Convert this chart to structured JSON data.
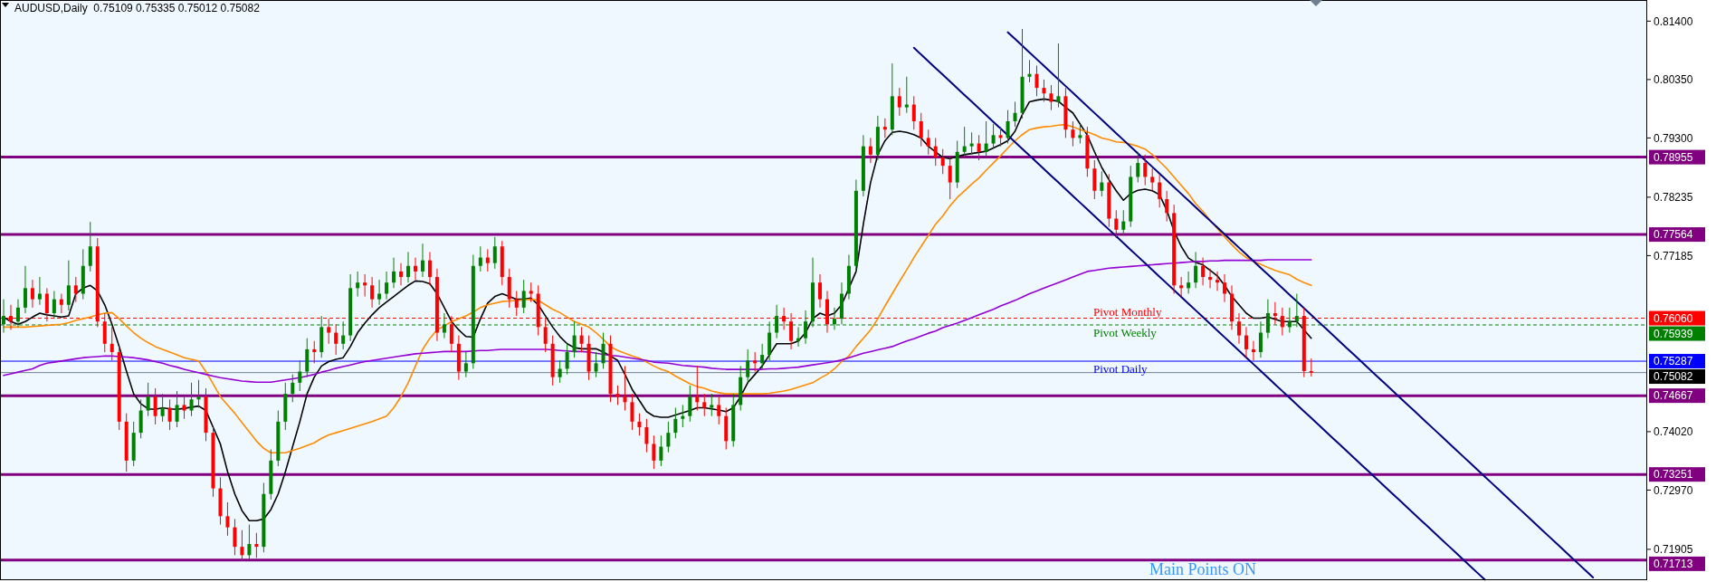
{
  "chart_data": {
    "type": "candlestick",
    "title": "AUDUSD,Daily  0.75109 0.75335 0.75012 0.75082",
    "categories": [
      null,
      null,
      null,
      null,
      null,
      null,
      null,
      null,
      null,
      null,
      null,
      null,
      null,
      null,
      null,
      null,
      null,
      null,
      null,
      null,
      null,
      null,
      null,
      null,
      null,
      null,
      null,
      null,
      null,
      null,
      null,
      null,
      null,
      null,
      null,
      null,
      null,
      null,
      null,
      null,
      null,
      null,
      null,
      null,
      null,
      null,
      null,
      null,
      null,
      null,
      null,
      null,
      null,
      null,
      null,
      null,
      null,
      null,
      null,
      null,
      null,
      null,
      null,
      null,
      null,
      null,
      null,
      null,
      null,
      null,
      null,
      null,
      null,
      null,
      null,
      null,
      null,
      null,
      null,
      null,
      null,
      null,
      null,
      null,
      null,
      null,
      null,
      null,
      null,
      null,
      null,
      null,
      null,
      null,
      null,
      null,
      null,
      null,
      null,
      null,
      null,
      null,
      null,
      null,
      null,
      null,
      null,
      null,
      null,
      null,
      null,
      null,
      null,
      null,
      null,
      null,
      null,
      null,
      null,
      null,
      null,
      null,
      null,
      null,
      null,
      null,
      null,
      null,
      null,
      null,
      null,
      null,
      null,
      null,
      null,
      null,
      null,
      null,
      null,
      null,
      null,
      null,
      null,
      null,
      null,
      null,
      null,
      null,
      null,
      null,
      null,
      null,
      null,
      null,
      null,
      null,
      null,
      null,
      null,
      null,
      null,
      null,
      null,
      null,
      null,
      null,
      null,
      null,
      null,
      null,
      null,
      null,
      null,
      null,
      null,
      null,
      null,
      null,
      null,
      null,
      null,
      null,
      null,
      null,
      null,
      null,
      null,
      null,
      null,
      null,
      null,
      null,
      null,
      null,
      null,
      null,
      null,
      null,
      null,
      null,
      null,
      null,
      null,
      null,
      null,
      null,
      null,
      null,
      null,
      null,
      null,
      null,
      null,
      null,
      null,
      null,
      null,
      null,
      null,
      null,
      null,
      null,
      null,
      null,
      null,
      null,
      null,
      null
    ],
    "ohlc": [
      [
        0.7595,
        0.764,
        0.758,
        0.761
      ],
      [
        0.761,
        0.763,
        0.7585,
        0.76
      ],
      [
        0.76,
        0.764,
        0.759,
        0.7625
      ],
      [
        0.7625,
        0.77,
        0.7615,
        0.766
      ],
      [
        0.766,
        0.7675,
        0.7625,
        0.764
      ],
      [
        0.764,
        0.768,
        0.763,
        0.765
      ],
      [
        0.765,
        0.766,
        0.76,
        0.7615
      ],
      [
        0.7615,
        0.7655,
        0.7605,
        0.764
      ],
      [
        0.764,
        0.765,
        0.7615,
        0.763
      ],
      [
        0.763,
        0.771,
        0.762,
        0.7665
      ],
      [
        0.7665,
        0.768,
        0.7635,
        0.765
      ],
      [
        0.765,
        0.773,
        0.764,
        0.77
      ],
      [
        0.77,
        0.7779,
        0.769,
        0.7735
      ],
      [
        0.7735,
        0.775,
        0.759,
        0.76
      ],
      [
        0.76,
        0.7615,
        0.7545,
        0.756
      ],
      [
        0.756,
        0.759,
        0.753,
        0.7545
      ],
      [
        0.7545,
        0.7555,
        0.7405,
        0.742
      ],
      [
        0.742,
        0.7435,
        0.733,
        0.735
      ],
      [
        0.735,
        0.742,
        0.734,
        0.74
      ],
      [
        0.74,
        0.746,
        0.739,
        0.744
      ],
      [
        0.744,
        0.749,
        0.743,
        0.7465
      ],
      [
        0.7465,
        0.748,
        0.7415,
        0.743
      ],
      [
        0.743,
        0.747,
        0.742,
        0.7445
      ],
      [
        0.7445,
        0.746,
        0.7405,
        0.742
      ],
      [
        0.742,
        0.7475,
        0.741,
        0.745
      ],
      [
        0.745,
        0.7465,
        0.7425,
        0.744
      ],
      [
        0.744,
        0.749,
        0.743,
        0.746
      ],
      [
        0.746,
        0.7495,
        0.7445,
        0.7465
      ],
      [
        0.7465,
        0.748,
        0.7385,
        0.74
      ],
      [
        0.74,
        0.741,
        0.7285,
        0.73
      ],
      [
        0.73,
        0.732,
        0.7235,
        0.725
      ],
      [
        0.725,
        0.7275,
        0.7215,
        0.723
      ],
      [
        0.723,
        0.7245,
        0.718,
        0.7195
      ],
      [
        0.7195,
        0.7225,
        0.717,
        0.718
      ],
      [
        0.718,
        0.7235,
        0.7172,
        0.72
      ],
      [
        0.72,
        0.722,
        0.7175,
        0.7195
      ],
      [
        0.7195,
        0.731,
        0.7185,
        0.729
      ],
      [
        0.729,
        0.737,
        0.728,
        0.735
      ],
      [
        0.735,
        0.744,
        0.734,
        0.742
      ],
      [
        0.742,
        0.749,
        0.7405,
        0.747
      ],
      [
        0.747,
        0.7505,
        0.7455,
        0.749
      ],
      [
        0.749,
        0.753,
        0.7475,
        0.751
      ],
      [
        0.751,
        0.757,
        0.75,
        0.755
      ],
      [
        0.755,
        0.7565,
        0.7525,
        0.7545
      ],
      [
        0.7545,
        0.761,
        0.7535,
        0.759
      ],
      [
        0.759,
        0.7605,
        0.756,
        0.758
      ],
      [
        0.758,
        0.7595,
        0.754,
        0.756
      ],
      [
        0.756,
        0.76,
        0.755,
        0.7575
      ],
      [
        0.7575,
        0.7685,
        0.7565,
        0.766
      ],
      [
        0.766,
        0.769,
        0.7645,
        0.767
      ],
      [
        0.767,
        0.7685,
        0.7645,
        0.7665
      ],
      [
        0.7665,
        0.768,
        0.7625,
        0.764
      ],
      [
        0.764,
        0.7675,
        0.763,
        0.765
      ],
      [
        0.765,
        0.769,
        0.764,
        0.767
      ],
      [
        0.767,
        0.7715,
        0.766,
        0.769
      ],
      [
        0.769,
        0.7705,
        0.7665,
        0.768
      ],
      [
        0.768,
        0.7725,
        0.767,
        0.77
      ],
      [
        0.77,
        0.7715,
        0.7675,
        0.769
      ],
      [
        0.769,
        0.774,
        0.768,
        0.771
      ],
      [
        0.771,
        0.7725,
        0.7665,
        0.768
      ],
      [
        0.768,
        0.7695,
        0.7565,
        0.758
      ],
      [
        0.758,
        0.7615,
        0.757,
        0.7595
      ],
      [
        0.7595,
        0.761,
        0.7545,
        0.756
      ],
      [
        0.756,
        0.7575,
        0.7495,
        0.751
      ],
      [
        0.751,
        0.7545,
        0.75,
        0.7525
      ],
      [
        0.7525,
        0.772,
        0.7515,
        0.77
      ],
      [
        0.77,
        0.7735,
        0.769,
        0.7715
      ],
      [
        0.7715,
        0.773,
        0.769,
        0.7705
      ],
      [
        0.7705,
        0.7752,
        0.7695,
        0.7735
      ],
      [
        0.7735,
        0.7745,
        0.7665,
        0.768
      ],
      [
        0.768,
        0.7695,
        0.7625,
        0.764
      ],
      [
        0.764,
        0.7655,
        0.761,
        0.7625
      ],
      [
        0.7625,
        0.7675,
        0.7615,
        0.7655
      ],
      [
        0.7655,
        0.767,
        0.7635,
        0.765
      ],
      [
        0.765,
        0.7665,
        0.7575,
        0.759
      ],
      [
        0.759,
        0.7605,
        0.7545,
        0.756
      ],
      [
        0.756,
        0.7575,
        0.7485,
        0.75
      ],
      [
        0.75,
        0.753,
        0.749,
        0.7515
      ],
      [
        0.7515,
        0.756,
        0.7505,
        0.7545
      ],
      [
        0.7545,
        0.76,
        0.7535,
        0.7575
      ],
      [
        0.7575,
        0.759,
        0.7545,
        0.756
      ],
      [
        0.756,
        0.7575,
        0.7495,
        0.751
      ],
      [
        0.751,
        0.7545,
        0.75,
        0.7525
      ],
      [
        0.7525,
        0.758,
        0.7515,
        0.756
      ],
      [
        0.756,
        0.7575,
        0.7455,
        0.747
      ],
      [
        0.747,
        0.7485,
        0.745,
        0.7465
      ],
      [
        0.7465,
        0.752,
        0.744,
        0.7455
      ],
      [
        0.7455,
        0.747,
        0.7405,
        0.742
      ],
      [
        0.742,
        0.7435,
        0.7395,
        0.741
      ],
      [
        0.741,
        0.7425,
        0.7365,
        0.738
      ],
      [
        0.738,
        0.7395,
        0.7335,
        0.735
      ],
      [
        0.735,
        0.7395,
        0.734,
        0.7375
      ],
      [
        0.7375,
        0.742,
        0.7365,
        0.74
      ],
      [
        0.74,
        0.7445,
        0.739,
        0.7425
      ],
      [
        0.7425,
        0.745,
        0.741,
        0.743
      ],
      [
        0.743,
        0.7485,
        0.742,
        0.7465
      ],
      [
        0.7465,
        0.752,
        0.744,
        0.7455
      ],
      [
        0.7455,
        0.747,
        0.743,
        0.7445
      ],
      [
        0.7445,
        0.747,
        0.743,
        0.745
      ],
      [
        0.745,
        0.7465,
        0.7415,
        0.743
      ],
      [
        0.743,
        0.7445,
        0.737,
        0.7385
      ],
      [
        0.7385,
        0.747,
        0.7375,
        0.745
      ],
      [
        0.745,
        0.752,
        0.744,
        0.75
      ],
      [
        0.75,
        0.755,
        0.749,
        0.753
      ],
      [
        0.753,
        0.7545,
        0.751,
        0.7525
      ],
      [
        0.7525,
        0.756,
        0.7515,
        0.754
      ],
      [
        0.754,
        0.76,
        0.753,
        0.758
      ],
      [
        0.758,
        0.763,
        0.757,
        0.761
      ],
      [
        0.761,
        0.7625,
        0.7585,
        0.76
      ],
      [
        0.76,
        0.7615,
        0.755,
        0.7565
      ],
      [
        0.7565,
        0.759,
        0.7555,
        0.757
      ],
      [
        0.757,
        0.762,
        0.756,
        0.76
      ],
      [
        0.76,
        0.7715,
        0.759,
        0.767
      ],
      [
        0.767,
        0.7685,
        0.7625,
        0.764
      ],
      [
        0.764,
        0.7655,
        0.758,
        0.7595
      ],
      [
        0.7595,
        0.7625,
        0.7585,
        0.7605
      ],
      [
        0.7605,
        0.767,
        0.7595,
        0.765
      ],
      [
        0.765,
        0.772,
        0.764,
        0.77
      ],
      [
        0.77,
        0.7855,
        0.769,
        0.7835
      ],
      [
        0.7835,
        0.7935,
        0.7825,
        0.7915
      ],
      [
        0.7915,
        0.793,
        0.7885,
        0.79
      ],
      [
        0.79,
        0.797,
        0.789,
        0.795
      ],
      [
        0.795,
        0.7965,
        0.793,
        0.7945
      ],
      [
        0.7945,
        0.8064,
        0.7935,
        0.8005
      ],
      [
        0.8005,
        0.802,
        0.797,
        0.7985
      ],
      [
        0.7985,
        0.804,
        0.7975,
        0.799
      ],
      [
        0.799,
        0.8005,
        0.7945,
        0.796
      ],
      [
        0.796,
        0.7975,
        0.7915,
        0.793
      ],
      [
        0.793,
        0.7945,
        0.79,
        0.7915
      ],
      [
        0.7915,
        0.793,
        0.788,
        0.7895
      ],
      [
        0.7895,
        0.791,
        0.7865,
        0.788
      ],
      [
        0.788,
        0.7895,
        0.782,
        0.785
      ],
      [
        0.785,
        0.7925,
        0.784,
        0.7905
      ],
      [
        0.7905,
        0.795,
        0.7895,
        0.7915
      ],
      [
        0.7915,
        0.794,
        0.79,
        0.792
      ],
      [
        0.792,
        0.7935,
        0.789,
        0.7905
      ],
      [
        0.7905,
        0.796,
        0.7895,
        0.792
      ],
      [
        0.792,
        0.7955,
        0.791,
        0.7935
      ],
      [
        0.7935,
        0.795,
        0.7915,
        0.793
      ],
      [
        0.793,
        0.798,
        0.792,
        0.796
      ],
      [
        0.796,
        0.7995,
        0.795,
        0.7975
      ],
      [
        0.7975,
        0.8126,
        0.7965,
        0.804
      ],
      [
        0.804,
        0.807,
        0.803,
        0.8045
      ],
      [
        0.8045,
        0.806,
        0.8005,
        0.802
      ],
      [
        0.802,
        0.8035,
        0.7995,
        0.801
      ],
      [
        0.801,
        0.8025,
        0.798,
        0.7995
      ],
      [
        0.7995,
        0.81,
        0.7985,
        0.8005
      ],
      [
        0.8005,
        0.802,
        0.793,
        0.7945
      ],
      [
        0.7945,
        0.796,
        0.7915,
        0.793
      ],
      [
        0.793,
        0.7955,
        0.792,
        0.7935
      ],
      [
        0.7935,
        0.795,
        0.786,
        0.7875
      ],
      [
        0.7875,
        0.789,
        0.782,
        0.7835
      ],
      [
        0.7835,
        0.787,
        0.7825,
        0.785
      ],
      [
        0.785,
        0.7865,
        0.777,
        0.7785
      ],
      [
        0.7785,
        0.78,
        0.775,
        0.7765
      ],
      [
        0.7765,
        0.78,
        0.7755,
        0.778
      ],
      [
        0.778,
        0.788,
        0.777,
        0.786
      ],
      [
        0.786,
        0.7905,
        0.785,
        0.7885
      ],
      [
        0.7885,
        0.79,
        0.7845,
        0.786
      ],
      [
        0.786,
        0.7875,
        0.7835,
        0.785
      ],
      [
        0.785,
        0.7865,
        0.7805,
        0.782
      ],
      [
        0.782,
        0.7835,
        0.778,
        0.7795
      ],
      [
        0.7795,
        0.781,
        0.765,
        0.7665
      ],
      [
        0.7665,
        0.768,
        0.7645,
        0.766
      ],
      [
        0.766,
        0.769,
        0.765,
        0.767
      ],
      [
        0.767,
        0.7725,
        0.766,
        0.77
      ],
      [
        0.77,
        0.7715,
        0.7665,
        0.768
      ],
      [
        0.768,
        0.7695,
        0.766,
        0.7675
      ],
      [
        0.7675,
        0.769,
        0.7655,
        0.767
      ],
      [
        0.767,
        0.7685,
        0.7635,
        0.765
      ],
      [
        0.765,
        0.7665,
        0.7585,
        0.76
      ],
      [
        0.76,
        0.7615,
        0.756,
        0.7575
      ],
      [
        0.7575,
        0.759,
        0.7535,
        0.755
      ],
      [
        0.755,
        0.7565,
        0.753,
        0.7545
      ],
      [
        0.7545,
        0.76,
        0.7535,
        0.758
      ],
      [
        0.758,
        0.764,
        0.757,
        0.7615
      ],
      [
        0.7615,
        0.7635,
        0.7595,
        0.761
      ],
      [
        0.761,
        0.7625,
        0.7575,
        0.759
      ],
      [
        0.759,
        0.7625,
        0.758,
        0.76
      ],
      [
        0.76,
        0.765,
        0.759,
        0.761
      ],
      [
        0.761,
        0.7625,
        0.75,
        0.7511
      ],
      [
        0.75109,
        0.75335,
        0.75012,
        0.75082
      ],
      null,
      null,
      null,
      null,
      null,
      null,
      null,
      null,
      null,
      null,
      null,
      null,
      null,
      null,
      null,
      null,
      null,
      null,
      null,
      null,
      null,
      null,
      null,
      null,
      null,
      null,
      null,
      null,
      null,
      null,
      null,
      null,
      null,
      null,
      null,
      null,
      null,
      null,
      null,
      null,
      null,
      null,
      null,
      null,
      null,
      null
    ],
    "series": [
      {
        "type": "line",
        "color": "#000000",
        "values": [
          0.7608,
          0.76,
          0.7595,
          0.76,
          0.7608,
          0.7615,
          0.7612,
          0.761,
          0.7608,
          0.761,
          0.765,
          0.766,
          0.7665,
          0.7655,
          0.763,
          0.7595,
          0.7555,
          0.7511,
          0.747,
          0.7452,
          0.7443,
          0.7442,
          0.7445,
          0.7443,
          0.7442,
          0.7444,
          0.7446,
          0.7448,
          0.744,
          0.741,
          0.738,
          0.733,
          0.729,
          0.726,
          0.7242,
          0.7242,
          0.7245,
          0.7262,
          0.729,
          0.733,
          0.7375,
          0.742,
          0.747,
          0.75,
          0.752,
          0.7528,
          0.7532,
          0.7535,
          0.7555,
          0.758,
          0.7597,
          0.7612,
          0.7625,
          0.7635,
          0.7645,
          0.7655,
          0.7665,
          0.7673,
          0.7672,
          0.7668,
          0.765,
          0.7625,
          0.76,
          0.7585,
          0.7573,
          0.7572,
          0.7605,
          0.7633,
          0.7645,
          0.765,
          0.7645,
          0.764,
          0.764,
          0.7642,
          0.763,
          0.761,
          0.759,
          0.7573,
          0.756,
          0.7553,
          0.7551,
          0.7551,
          0.7551,
          0.7545,
          0.7538,
          0.753,
          0.7505,
          0.7478,
          0.7458,
          0.7438,
          0.743,
          0.7428,
          0.7428,
          0.7432,
          0.7436,
          0.744,
          0.7445,
          0.7445,
          0.7443,
          0.7441,
          0.7438,
          0.7445,
          0.7465,
          0.749,
          0.7505,
          0.752,
          0.754,
          0.756,
          0.756,
          0.756,
          0.7565,
          0.758,
          0.7605,
          0.7615,
          0.761,
          0.7615,
          0.763,
          0.766,
          0.769,
          0.7775,
          0.785,
          0.79,
          0.7925,
          0.794,
          0.7942,
          0.794,
          0.7936,
          0.793,
          0.7915,
          0.7905,
          0.7895,
          0.7893,
          0.7897,
          0.79,
          0.7902,
          0.7904,
          0.7906,
          0.7912,
          0.7918,
          0.7925,
          0.7942,
          0.7972,
          0.7995,
          0.7998,
          0.8,
          0.7998,
          0.7996,
          0.7985,
          0.7975,
          0.7955,
          0.7935,
          0.7905,
          0.7877,
          0.7855,
          0.7835,
          0.7818,
          0.783,
          0.7836,
          0.7838,
          0.7835,
          0.7828,
          0.78,
          0.7763,
          0.7735,
          0.7714,
          0.7706,
          0.7702,
          0.7692,
          0.7682,
          0.7665,
          0.7645,
          0.763,
          0.7615,
          0.7606,
          0.7606,
          0.7608,
          0.7604,
          0.76,
          0.76,
          0.76,
          0.7585,
          0.757,
          null,
          null,
          null,
          null,
          null,
          null,
          null,
          null,
          null,
          null,
          null,
          null,
          null,
          null,
          null,
          null,
          null,
          null,
          null,
          null,
          null,
          null,
          null,
          null,
          null,
          null,
          null,
          null,
          null,
          null,
          null,
          null,
          null,
          null,
          null,
          null,
          null,
          null,
          null,
          null,
          null,
          null,
          null,
          null,
          null,
          null
        ]
      },
      {
        "type": "line",
        "color": "#ff8c00",
        "values": [
          0.759,
          0.759,
          0.759,
          0.759,
          0.7591,
          0.7592,
          0.7593,
          0.7594,
          0.7595,
          0.7598,
          0.7602,
          0.7605,
          0.7608,
          0.7612,
          0.7615,
          0.7616,
          0.7605,
          0.7592,
          0.758,
          0.757,
          0.7562,
          0.7555,
          0.755,
          0.7545,
          0.754,
          0.7535,
          0.7532,
          0.7529,
          0.751,
          0.7488,
          0.7465,
          0.745,
          0.7435,
          0.7418,
          0.7402,
          0.7385,
          0.7372,
          0.7364,
          0.7364,
          0.7364,
          0.7368,
          0.7372,
          0.7377,
          0.7382,
          0.739,
          0.7396,
          0.74,
          0.7404,
          0.7408,
          0.7412,
          0.7416,
          0.742,
          0.7425,
          0.743,
          0.7445,
          0.7465,
          0.749,
          0.752,
          0.755,
          0.757,
          0.7585,
          0.7592,
          0.76,
          0.7605,
          0.761,
          0.7617,
          0.7625,
          0.763,
          0.7633,
          0.7636,
          0.7637,
          0.7638,
          0.7639,
          0.764,
          0.7638,
          0.763,
          0.7622,
          0.7616,
          0.7608,
          0.76,
          0.7595,
          0.759,
          0.758,
          0.7568,
          0.7555,
          0.7548,
          0.7543,
          0.7538,
          0.7534,
          0.7527,
          0.752,
          0.7514,
          0.751,
          0.7502,
          0.7495,
          0.7488,
          0.7483,
          0.748,
          0.7475,
          0.7472,
          0.747,
          0.747,
          0.747,
          0.747,
          0.747,
          0.747,
          0.7471,
          0.7473,
          0.7475,
          0.7478,
          0.7482,
          0.7486,
          0.749,
          0.7498,
          0.7505,
          0.7515,
          0.7528,
          0.7538,
          0.7555,
          0.757,
          0.7585,
          0.7605,
          0.7628,
          0.765,
          0.7672,
          0.7693,
          0.7715,
          0.7735,
          0.7755,
          0.7775,
          0.779,
          0.7808,
          0.7823,
          0.7835,
          0.7847,
          0.7858,
          0.7872,
          0.7885,
          0.7898,
          0.7912,
          0.7925,
          0.7936,
          0.7945,
          0.7948,
          0.795,
          0.7951,
          0.7953,
          0.7954,
          0.795,
          0.7945,
          0.7941,
          0.7936,
          0.793,
          0.7927,
          0.7923,
          0.7922,
          0.7919,
          0.7915,
          0.791,
          0.79,
          0.7888,
          0.7875,
          0.786,
          0.7845,
          0.783,
          0.7812,
          0.7798,
          0.7782,
          0.7767,
          0.7752,
          0.7738,
          0.7725,
          0.7715,
          0.7708,
          0.7703,
          0.7697,
          0.7692,
          0.7688,
          0.7684,
          0.7676,
          0.767,
          0.7665,
          null,
          null,
          null,
          null,
          null,
          null,
          null,
          null,
          null,
          null,
          null,
          null,
          null,
          null,
          null,
          null,
          null,
          null,
          null,
          null,
          null,
          null,
          null,
          null,
          null,
          null,
          null,
          null,
          null,
          null,
          null,
          null,
          null,
          null,
          null,
          null,
          null,
          null,
          null,
          null,
          null,
          null,
          null,
          null,
          null,
          null
        ]
      },
      {
        "type": "line",
        "color": "#9400d3",
        "values": [
          0.7503,
          0.7506,
          0.7509,
          0.7512,
          0.7515,
          0.7521,
          0.7525,
          0.7527,
          0.7529,
          0.7531,
          0.7533,
          0.7535,
          0.7536,
          0.7537,
          0.7538,
          0.7538,
          0.7537,
          0.7536,
          0.7535,
          0.7533,
          0.7531,
          0.7528,
          0.7525,
          0.7521,
          0.7518,
          0.7514,
          0.7511,
          0.7508,
          0.7505,
          0.7502,
          0.7499,
          0.7497,
          0.7495,
          0.7493,
          0.7492,
          0.7491,
          0.7491,
          0.7491,
          0.7493,
          0.7495,
          0.7497,
          0.7499,
          0.7502,
          0.7505,
          0.7509,
          0.7512,
          0.7516,
          0.7519,
          0.7522,
          0.7525,
          0.7528,
          0.753,
          0.7532,
          0.7534,
          0.7536,
          0.7538,
          0.754,
          0.7542,
          0.7543,
          0.7544,
          0.7545,
          0.7546,
          0.7546,
          0.7546,
          0.7546,
          0.7547,
          0.7548,
          0.7548,
          0.7549,
          0.755,
          0.755,
          0.755,
          0.755,
          0.755,
          0.755,
          0.755,
          0.7549,
          0.7548,
          0.7547,
          0.7546,
          0.7546,
          0.7545,
          0.7543,
          0.7541,
          0.7539,
          0.7538,
          0.7536,
          0.7534,
          0.7532,
          0.753,
          0.7527,
          0.7526,
          0.7525,
          0.7523,
          0.7521,
          0.752,
          0.7519,
          0.7518,
          0.7516,
          0.7515,
          0.7514,
          0.7514,
          0.7514,
          0.7514,
          0.7514,
          0.7514,
          0.7515,
          0.7515,
          0.7516,
          0.7517,
          0.7518,
          0.752,
          0.7522,
          0.7524,
          0.7526,
          0.7528,
          0.7531,
          0.7535,
          0.7539,
          0.7543,
          0.7546,
          0.7549,
          0.7552,
          0.7555,
          0.756,
          0.7565,
          0.7569,
          0.7574,
          0.7579,
          0.7583,
          0.7589,
          0.7593,
          0.7597,
          0.7602,
          0.7607,
          0.7612,
          0.7617,
          0.7622,
          0.7628,
          0.7633,
          0.7638,
          0.7644,
          0.765,
          0.7655,
          0.766,
          0.7665,
          0.767,
          0.7675,
          0.768,
          0.7685,
          0.769,
          0.7692,
          0.7694,
          0.7696,
          0.7697,
          0.7698,
          0.7699,
          0.77,
          0.7701,
          0.7702,
          0.7703,
          0.7704,
          0.7705,
          0.7706,
          0.7707,
          0.7708,
          0.7708,
          0.7709,
          0.7709,
          0.771,
          0.771,
          0.771,
          0.771,
          0.771,
          0.771,
          0.7711,
          0.7711,
          0.7711,
          0.7711,
          0.7711,
          0.7711,
          0.7711,
          null,
          null,
          null,
          null,
          null,
          null,
          null,
          null,
          null,
          null,
          null,
          null,
          null,
          null,
          null,
          null,
          null,
          null,
          null,
          null,
          null,
          null,
          null,
          null,
          null,
          null,
          null,
          null,
          null,
          null,
          null,
          null,
          null,
          null,
          null,
          null,
          null,
          null,
          null,
          null,
          null,
          null,
          null,
          null,
          null,
          null
        ]
      },
      {
        "type": "line",
        "color": "#000080",
        "values": [
          null,
          null,
          null,
          null,
          null,
          null,
          null,
          null,
          null,
          null,
          null,
          null,
          null,
          null,
          null,
          null,
          null,
          null,
          null,
          null,
          null,
          null,
          null,
          null,
          null,
          null,
          null,
          null,
          null,
          null,
          null,
          null,
          null,
          null,
          null,
          null,
          null,
          null,
          null,
          null,
          null,
          null,
          null,
          null,
          null,
          null,
          null,
          null,
          null,
          null,
          null,
          null,
          null,
          null,
          null,
          null,
          null,
          null,
          null,
          null,
          null,
          null,
          null,
          null,
          null,
          null,
          null,
          null,
          null,
          null,
          null,
          null,
          null,
          null,
          null,
          null,
          null,
          null,
          null,
          null,
          null,
          null,
          null,
          null,
          null,
          null,
          null,
          null,
          null,
          null,
          null,
          null,
          null,
          null,
          null,
          null,
          null,
          null,
          null,
          null,
          null,
          null,
          null,
          null,
          null,
          null,
          null,
          null,
          null,
          null,
          null,
          null,
          null,
          null,
          null,
          null,
          null,
          null,
          null,
          null,
          null,
          null,
          null,
          null,
          null,
          null,
          null,
          null,
          null,
          null,
          null,
          null,
          null,
          null,
          null,
          null,
          null,
          null,
          null,
          0.812,
          0.81079,
          0.80958,
          0.80837,
          0.80716,
          0.80595,
          0.80474,
          0.80353,
          0.80232,
          0.80111,
          0.7999,
          0.79869,
          0.79748,
          0.79627,
          0.79506,
          0.79385,
          0.79264,
          0.79143,
          0.79022,
          0.78901,
          0.7878,
          0.78659,
          0.78538,
          0.78417,
          0.78296,
          0.78175,
          0.78054,
          0.77933,
          0.77812,
          0.77691,
          0.7757,
          0.77449,
          0.77328,
          0.77207,
          0.77086,
          0.76965,
          0.76844,
          0.76723,
          0.76602,
          0.76481,
          0.7636,
          0.76239,
          0.76118,
          0.75997,
          0.75876,
          0.75755,
          0.75634,
          0.75513,
          0.75392,
          0.75271,
          0.7515,
          0.75029,
          0.74908,
          0.74787,
          0.74666,
          0.74545,
          0.74424,
          0.74303,
          0.74182,
          0.74061,
          0.7394,
          0.73819,
          0.73698,
          0.73577,
          0.73456,
          0.73335,
          0.73214,
          0.73093,
          0.72972,
          0.72851,
          0.7273,
          0.72609,
          0.72488,
          0.72367,
          0.72246,
          0.72125,
          0.72004,
          0.71883,
          0.71762,
          0.71641,
          0.7152,
          0.71399,
          null,
          null,
          null,
          null,
          null,
          null,
          null
        ]
      },
      {
        "type": "line",
        "color": "#000080",
        "values": [
          null,
          null,
          null,
          null,
          null,
          null,
          null,
          null,
          null,
          null,
          null,
          null,
          null,
          null,
          null,
          null,
          null,
          null,
          null,
          null,
          null,
          null,
          null,
          null,
          null,
          null,
          null,
          null,
          null,
          null,
          null,
          null,
          null,
          null,
          null,
          null,
          null,
          null,
          null,
          null,
          null,
          null,
          null,
          null,
          null,
          null,
          null,
          null,
          null,
          null,
          null,
          null,
          null,
          null,
          null,
          null,
          null,
          null,
          null,
          null,
          null,
          null,
          null,
          null,
          null,
          null,
          null,
          null,
          null,
          null,
          null,
          null,
          null,
          null,
          null,
          null,
          null,
          null,
          null,
          null,
          null,
          null,
          null,
          null,
          null,
          null,
          null,
          null,
          null,
          null,
          null,
          null,
          null,
          null,
          null,
          null,
          null,
          null,
          null,
          null,
          null,
          null,
          null,
          null,
          null,
          null,
          null,
          null,
          null,
          null,
          null,
          null,
          null,
          null,
          null,
          null,
          null,
          null,
          null,
          null,
          null,
          null,
          null,
          null,
          null,
          null,
          0.8092,
          0.80799,
          0.80678,
          0.80557,
          0.80436,
          0.80315,
          0.80194,
          0.80073,
          0.79952,
          0.79831,
          0.7971,
          0.79589,
          0.79468,
          0.79347,
          0.79226,
          0.79105,
          0.78984,
          0.78863,
          0.78742,
          0.78621,
          0.785,
          0.78379,
          0.78258,
          0.78137,
          0.78016,
          0.77895,
          0.77774,
          0.77653,
          0.77532,
          0.77411,
          0.7729,
          0.77169,
          0.77048,
          0.76927,
          0.76806,
          0.76685,
          0.76564,
          0.76443,
          0.76322,
          0.76201,
          0.7608,
          0.75959,
          0.75838,
          0.75717,
          0.75596,
          0.75475,
          0.75354,
          0.75233,
          0.75112,
          0.74991,
          0.7487,
          0.74749,
          0.74628,
          0.74507,
          0.74386,
          0.74265,
          0.74144,
          0.74023,
          0.73902,
          0.73781,
          0.7366,
          0.73539,
          0.73418,
          0.73297,
          0.73176,
          0.73055,
          0.72934,
          0.72813,
          0.72692,
          0.72571,
          0.7245,
          0.72329,
          0.72208,
          0.72087,
          0.71966,
          0.71845,
          0.71724,
          0.71603,
          0.71482,
          0.71361,
          null,
          null,
          null,
          null,
          null,
          null,
          null,
          null,
          null,
          null,
          null,
          null,
          null,
          null,
          null,
          null,
          null,
          null,
          null,
          null,
          null,
          null
        ]
      }
    ],
    "ylim": [
      0.7135,
      0.8178
    ],
    "yticks": [
      {
        "value": 0.814,
        "label": "0.81400"
      },
      {
        "value": 0.8035,
        "label": "0.80350"
      },
      {
        "value": 0.793,
        "label": "0.79300"
      },
      {
        "value": 0.78235,
        "label": "0.78235"
      },
      {
        "value": 0.77185,
        "label": "0.77185"
      },
      {
        "value": 0.7402,
        "label": "0.74020"
      },
      {
        "value": 0.7297,
        "label": "0.72970"
      },
      {
        "value": 0.71905,
        "label": "0.71905"
      }
    ],
    "ref_lines": [
      {
        "axis": "y",
        "value": 0.78955,
        "label": null,
        "color": "#800080",
        "line_style": "solid"
      },
      {
        "axis": "y",
        "value": 0.77564,
        "label": null,
        "color": "#800080",
        "line_style": "solid"
      },
      {
        "axis": "y",
        "value": 0.7606,
        "label": "Pivot Monthly",
        "color": "#ff0000",
        "line_style": "dashed"
      },
      {
        "axis": "y",
        "value": 0.75939,
        "label": "Pivot Weekly",
        "color": "#008000",
        "line_style": "dashed"
      },
      {
        "axis": "y",
        "value": 0.75287,
        "label": "Pivot Daily",
        "color": "#0000ff",
        "line_style": "solid"
      },
      {
        "axis": "y",
        "value": 0.75082,
        "label": null,
        "color": "#708090",
        "line_style": "solid"
      },
      {
        "axis": "y",
        "value": 0.74667,
        "label": null,
        "color": "#800080",
        "line_style": "solid"
      },
      {
        "axis": "y",
        "value": 0.73251,
        "label": null,
        "color": "#800080",
        "line_style": "solid"
      },
      {
        "axis": "y",
        "value": 0.71713,
        "label": null,
        "color": "#800080",
        "line_style": "solid"
      }
    ],
    "annotations": [
      "Main Points ON",
      "0.78955",
      "0.77564",
      "0.76060",
      "0.75939",
      "0.75287",
      "0.75082",
      "0.74667",
      "0.73251",
      "0.71713"
    ]
  }
}
